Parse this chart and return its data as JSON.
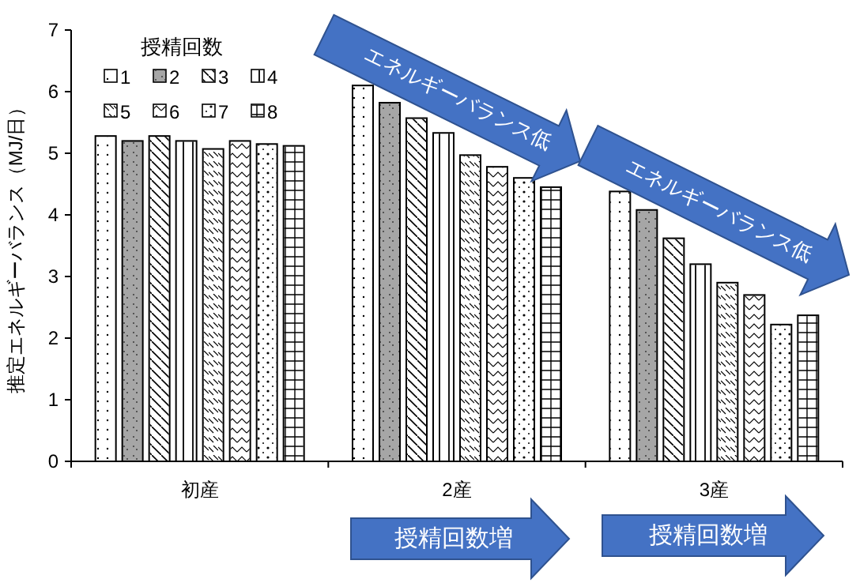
{
  "chart_data": {
    "type": "bar",
    "ylabel": "推定エネルギーバランス（MJ/日）",
    "legend_title": "授精回数",
    "legend": "top left",
    "categories": [
      "初産",
      "2産",
      "3産"
    ],
    "ylim": [
      0,
      7
    ],
    "yticks": [
      0,
      1,
      2,
      3,
      4,
      5,
      6,
      7
    ],
    "grid": false,
    "series": [
      {
        "name": "1",
        "color": "#ffffff",
        "values": [
          5.28,
          6.1,
          4.38
        ]
      },
      {
        "name": "2",
        "color": "#a6a6a6",
        "values": [
          5.2,
          5.82,
          4.08
        ]
      },
      {
        "name": "3",
        "color": "#ffffff",
        "values": [
          5.28,
          5.57,
          3.62
        ]
      },
      {
        "name": "4",
        "color": "#ffffff",
        "values": [
          5.2,
          5.33,
          3.2
        ]
      },
      {
        "name": "5",
        "color": "#ffffff",
        "values": [
          5.07,
          4.97,
          2.9
        ]
      },
      {
        "name": "6",
        "color": "#ffffff",
        "values": [
          5.2,
          4.78,
          2.7
        ]
      },
      {
        "name": "7",
        "color": "#ffffff",
        "values": [
          5.15,
          4.6,
          2.22
        ]
      },
      {
        "name": "8",
        "color": "#ffffff",
        "values": [
          5.12,
          4.45,
          2.37
        ]
      }
    ],
    "annotations": [
      "エネルギーバランス低",
      "エネルギーバランス低",
      "授精回数増",
      "授精回数増"
    ]
  }
}
